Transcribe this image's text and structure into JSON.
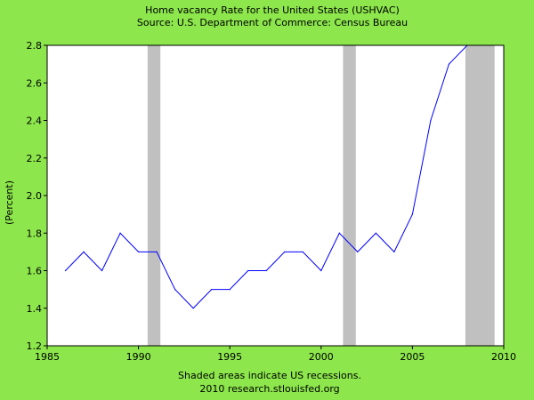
{
  "chart_data": {
    "type": "line",
    "title": "Home vacancy Rate for the United States (USHVAC)",
    "subtitle": "Source: U.S. Department of Commerce: Census Bureau",
    "xlabel": "",
    "ylabel": "(Percent)",
    "xlim": [
      1985,
      2010
    ],
    "ylim": [
      1.2,
      2.8
    ],
    "x_ticks": [
      1985,
      1990,
      1995,
      2000,
      2005,
      2010
    ],
    "y_ticks": [
      "1.2",
      "1.4",
      "1.6",
      "1.8",
      "2.0",
      "2.2",
      "2.4",
      "2.6",
      "2.8"
    ],
    "grid": false,
    "series": [
      {
        "x": [
          1986,
          1987,
          1988,
          1989,
          1990,
          1991,
          1992,
          1993,
          1994,
          1995,
          1996,
          1997,
          1998,
          1999,
          2000,
          2001,
          2002,
          2003,
          2004,
          2005,
          2006,
          2007,
          2008
        ],
        "values": [
          1.6,
          1.7,
          1.6,
          1.8,
          1.7,
          1.7,
          1.5,
          1.4,
          1.5,
          1.5,
          1.6,
          1.6,
          1.7,
          1.7,
          1.6,
          1.8,
          1.7,
          1.8,
          1.7,
          1.9,
          2.4,
          2.7,
          2.8
        ],
        "color": "#0000FF"
      }
    ],
    "recessions": [
      [
        1990.5,
        1991.2
      ],
      [
        2001.2,
        2001.9
      ],
      [
        2007.9,
        2009.5
      ]
    ],
    "recession_color": "#C0C0C0",
    "footnote": "Shaded areas indicate US recessions.",
    "credit": "2010 research.stlouisfed.org"
  },
  "colors": {
    "background": "#8CE64C",
    "plot_area": "#FFFFFF",
    "axis": "#000000"
  }
}
